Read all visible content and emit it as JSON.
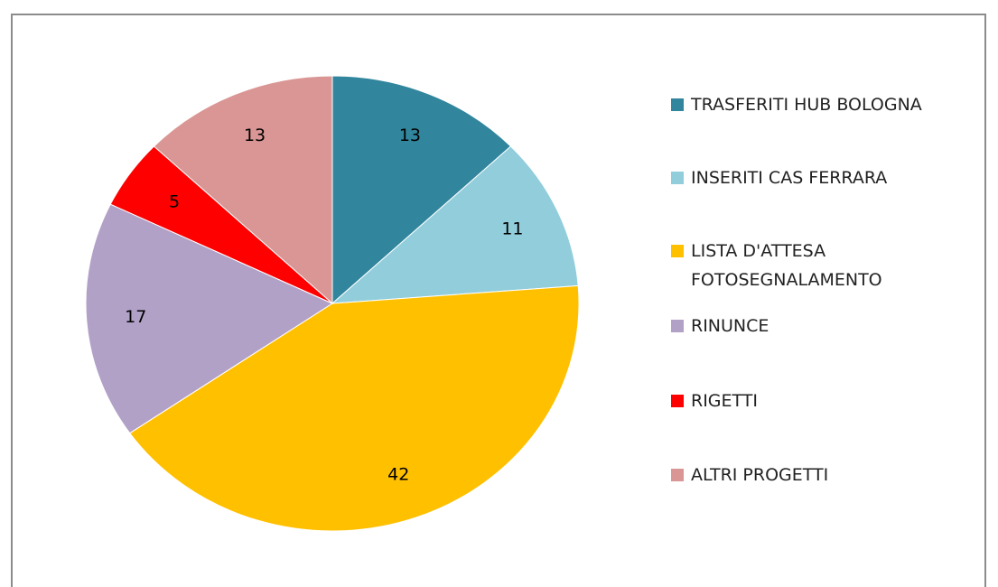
{
  "chart_data": {
    "type": "pie",
    "categories": [
      "TRASFERITI HUB BOLOGNA",
      "INSERITI CAS FERRARA",
      "LISTA D'ATTESA FOTOSEGNALAMENTO",
      "RINUNCE",
      "RIGETTI",
      "ALTRI PROGETTI"
    ],
    "values": [
      13,
      11,
      42,
      17,
      5,
      13
    ],
    "colors": [
      "#31859c",
      "#92cddc",
      "#ffc000",
      "#b2a1c7",
      "#ff0000",
      "#d99694"
    ],
    "legend": "right"
  }
}
